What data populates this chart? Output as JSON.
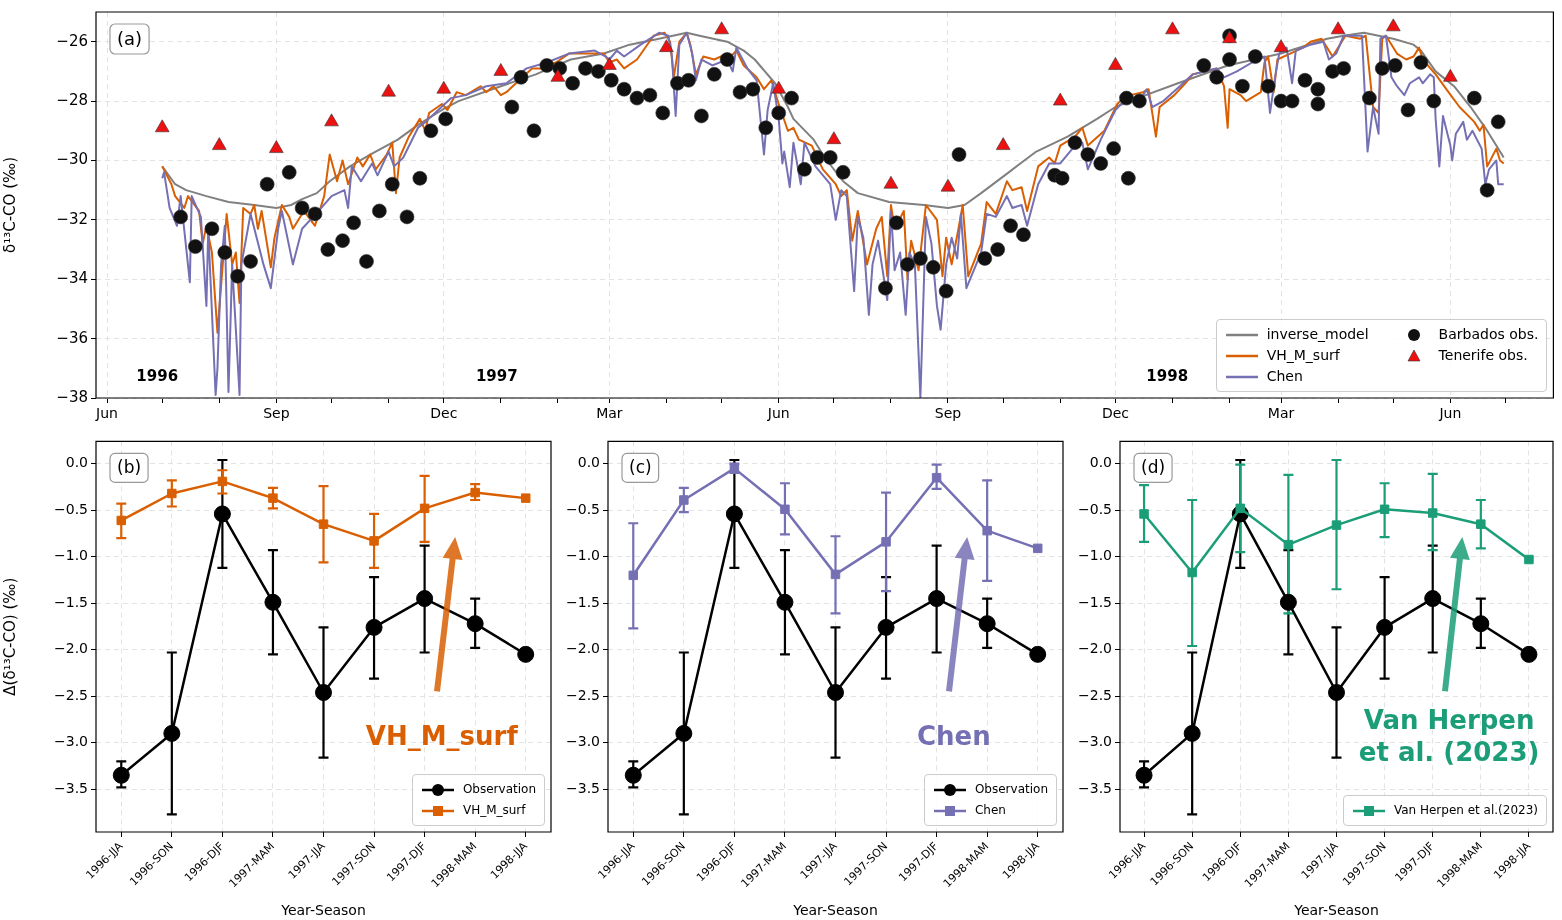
{
  "chart_data": [
    {
      "type": "line",
      "ylabel": "δ¹³C-CO (‰)",
      "xlim": [
        "1996-05-26",
        "1998-07-27"
      ],
      "ylim": [
        -38,
        -25.0
      ],
      "xticks": [
        {
          "value": "1996-06-01",
          "label": "Jun"
        },
        {
          "value": "1996-07-01",
          "label": null
        },
        {
          "value": "1996-08-01",
          "label": null
        },
        {
          "value": "1996-09-01",
          "label": "Sep"
        },
        {
          "value": "1996-10-01",
          "label": null
        },
        {
          "value": "1996-11-01",
          "label": null
        },
        {
          "value": "1996-12-01",
          "label": "Dec"
        },
        {
          "value": "1997-01-01",
          "label": null
        },
        {
          "value": "1997-02-01",
          "label": null
        },
        {
          "value": "1997-03-01",
          "label": "Mar"
        },
        {
          "value": "1997-04-01",
          "label": null
        },
        {
          "value": "1997-05-01",
          "label": null
        },
        {
          "value": "1997-06-01",
          "label": "Jun"
        },
        {
          "value": "1997-07-01",
          "label": null
        },
        {
          "value": "1997-08-01",
          "label": null
        },
        {
          "value": "1997-09-01",
          "label": "Sep"
        },
        {
          "value": "1997-10-01",
          "label": null
        },
        {
          "value": "1997-11-01",
          "label": null
        },
        {
          "value": "1997-12-01",
          "label": "Dec"
        },
        {
          "value": "1998-01-01",
          "label": null
        },
        {
          "value": "1998-02-01",
          "label": null
        },
        {
          "value": "1998-03-01",
          "label": "Mar"
        },
        {
          "value": "1998-04-01",
          "label": null
        },
        {
          "value": "1998-05-01",
          "label": null
        },
        {
          "value": "1998-06-01",
          "label": "Jun"
        },
        {
          "value": "1998-07-01",
          "label": null
        }
      ],
      "yticks": [
        {
          "value": -38,
          "label": "−38"
        },
        {
          "value": -36,
          "label": "−36"
        },
        {
          "value": -34,
          "label": "−34"
        },
        {
          "value": -32,
          "label": "−32"
        },
        {
          "value": -30,
          "label": "−30"
        },
        {
          "value": -28,
          "label": "−28"
        },
        {
          "value": -26,
          "label": "−26"
        }
      ],
      "grid": true,
      "legend": "bottom right",
      "annotations": [
        "(a)",
        "1996",
        "1997",
        "1998"
      ],
      "series": [
        {
          "name": "inverse_model",
          "type": "line",
          "color": "#808080",
          "x": [
            "1996-07-01",
            "1996-07-08",
            "1996-07-14",
            "1996-07-25",
            "1996-08-06",
            "1996-08-20",
            "1996-09-01",
            "1996-09-09",
            "1996-09-15",
            "1996-09-23",
            "1996-09-30",
            "1996-10-11",
            "1996-10-22",
            "1996-11-06",
            "1996-11-17",
            "1996-11-30",
            "1996-12-09",
            "1997-01-01",
            "1997-01-20",
            "1997-02-08",
            "1997-02-26",
            "1997-03-12",
            "1997-03-28",
            "1997-04-12",
            "1997-04-19",
            "1997-05-04",
            "1997-05-13",
            "1997-05-19",
            "1997-05-30",
            "1997-06-06",
            "1997-06-09",
            "1997-06-20",
            "1997-06-26",
            "1997-07-06",
            "1997-07-14",
            "1997-07-31",
            "1997-08-19",
            "1997-09-01",
            "1997-09-10",
            "1997-09-19",
            "1997-10-04",
            "1997-10-19",
            "1997-11-05",
            "1997-11-21",
            "1997-12-01",
            "1997-12-13",
            "1998-01-04",
            "1998-01-31",
            "1998-03-01",
            "1998-03-26",
            "1998-04-04",
            "1998-04-15",
            "1998-05-01",
            "1998-05-12",
            "1998-05-16",
            "1998-05-24",
            "1998-06-03",
            "1998-06-12",
            "1998-06-20",
            "1998-06-30"
          ],
          "values": [
            -30.2,
            -30.8,
            -31.0,
            -31.2,
            -31.4,
            -31.5,
            -31.6,
            -31.5,
            -31.3,
            -31.1,
            -30.7,
            -30.2,
            -29.8,
            -29.3,
            -28.8,
            -28.3,
            -28.0,
            -27.5,
            -27.1,
            -26.6,
            -26.4,
            -26.1,
            -25.9,
            -25.7,
            -25.8,
            -26.0,
            -26.3,
            -26.6,
            -27.4,
            -28.2,
            -28.6,
            -29.3,
            -29.9,
            -30.7,
            -31.1,
            -31.4,
            -31.5,
            -31.6,
            -31.5,
            -31.1,
            -30.4,
            -29.7,
            -29.2,
            -28.6,
            -28.2,
            -27.9,
            -27.4,
            -26.8,
            -26.4,
            -25.9,
            -25.8,
            -25.7,
            -25.9,
            -26.1,
            -26.3,
            -27.0,
            -27.5,
            -28.2,
            -28.9,
            -29.9
          ]
        },
        {
          "name": "VH_M_surf",
          "type": "line",
          "color": "#d95f02",
          "x": [
            "1996-07-01",
            "1996-07-06",
            "1996-07-08",
            "1996-07-13",
            "1996-07-15",
            "1996-07-21",
            "1996-07-23",
            "1996-07-25",
            "1996-07-28",
            "1996-07-31",
            "1996-08-02",
            "1996-08-05",
            "1996-08-08",
            "1996-08-10",
            "1996-08-12",
            "1996-08-14",
            "1996-08-18",
            "1996-08-20",
            "1996-08-22",
            "1996-08-24",
            "1996-08-29",
            "1996-08-31",
            "1996-09-04",
            "1996-09-08",
            "1996-09-10",
            "1996-09-16",
            "1996-09-22",
            "1996-09-27",
            "1996-09-30",
            "1996-10-04",
            "1996-10-07",
            "1996-10-10",
            "1996-10-15",
            "1996-10-18",
            "1996-10-22",
            "1996-10-25",
            "1996-10-31",
            "1996-11-03",
            "1996-11-05",
            "1996-11-07",
            "1996-11-12",
            "1996-11-18",
            "1996-11-21",
            "1996-11-23",
            "1996-11-30",
            "1996-12-03",
            "1996-12-08",
            "1996-12-13",
            "1996-12-21",
            "1996-12-24",
            "1996-12-28",
            "1997-01-01",
            "1997-01-04",
            "1997-01-11",
            "1997-01-18",
            "1997-01-23",
            "1997-01-31",
            "1997-02-07",
            "1997-02-20",
            "1997-02-26",
            "1997-03-01",
            "1997-03-05",
            "1997-03-09",
            "1997-03-16",
            "1997-03-25",
            "1997-03-31",
            "1997-04-03",
            "1997-04-05",
            "1997-04-08",
            "1997-04-12",
            "1997-04-14",
            "1997-04-17",
            "1997-04-21",
            "1997-04-27",
            "1997-05-04",
            "1997-05-06",
            "1997-05-09",
            "1997-05-13",
            "1997-05-20",
            "1997-05-24",
            "1997-05-28",
            "1997-06-01",
            "1997-06-06",
            "1997-06-09",
            "1997-06-12",
            "1997-06-19",
            "1997-06-25",
            "1997-07-02",
            "1997-07-05",
            "1997-07-08",
            "1997-07-11",
            "1997-07-14",
            "1997-07-19",
            "1997-07-24",
            "1997-07-27",
            "1997-07-30",
            "1997-08-01",
            "1997-08-03",
            "1997-08-08",
            "1997-08-10",
            "1997-08-12",
            "1997-08-16",
            "1997-08-20",
            "1997-08-26",
            "1997-08-29",
            "1997-08-31",
            "1997-09-03",
            "1997-09-07",
            "1997-09-09",
            "1997-09-12",
            "1997-09-19",
            "1997-09-22",
            "1997-09-27",
            "1997-10-03",
            "1997-10-06",
            "1997-10-11",
            "1997-10-14",
            "1997-10-20",
            "1997-10-26",
            "1997-10-29",
            "1997-11-01",
            "1997-11-09",
            "1997-11-13",
            "1997-11-16",
            "1997-11-25",
            "1997-12-02",
            "1997-12-07",
            "1997-12-09",
            "1997-12-16",
            "1997-12-19",
            "1997-12-21",
            "1997-12-23",
            "1997-12-25",
            "1998-01-02",
            "1998-01-08",
            "1998-01-12",
            "1998-01-25",
            "1998-01-29",
            "1998-01-31",
            "1998-02-01",
            "1998-02-07",
            "1998-02-10",
            "1998-02-18",
            "1998-02-20",
            "1998-02-22",
            "1998-02-25",
            "1998-02-27",
            "1998-03-06",
            "1998-03-13",
            "1998-03-17",
            "1998-03-23",
            "1998-03-26",
            "1998-03-29",
            "1998-04-02",
            "1998-04-05",
            "1998-04-13",
            "1998-04-16",
            "1998-04-20",
            "1998-04-23",
            "1998-04-25",
            "1998-04-27",
            "1998-05-03",
            "1998-05-08",
            "1998-05-12",
            "1998-05-15",
            "1998-05-17",
            "1998-05-24",
            "1998-05-31",
            "1998-06-06",
            "1998-06-14",
            "1998-06-17",
            "1998-06-19",
            "1998-06-21",
            "1998-06-26",
            "1998-06-28",
            "1998-06-30"
          ],
          "values": [
            -30.2,
            -30.8,
            -31.2,
            -31.6,
            -31.2,
            -31.7,
            -32.8,
            -32.2,
            -33.1,
            -35.8,
            -34.2,
            -31.8,
            -33.5,
            -33.1,
            -34.8,
            -31.6,
            -31.8,
            -31.5,
            -32.3,
            -31.7,
            -33.6,
            -32.6,
            -31.5,
            -31.9,
            -32.3,
            -31.7,
            -32.2,
            -31.2,
            -29.8,
            -30.7,
            -30.0,
            -30.8,
            -29.9,
            -30.2,
            -29.8,
            -30.3,
            -29.8,
            -29.4,
            -31.1,
            -29.9,
            -29.2,
            -28.6,
            -29.0,
            -28.4,
            -28.1,
            -28.3,
            -27.7,
            -27.8,
            -27.5,
            -27.7,
            -27.5,
            -27.8,
            -27.7,
            -27.3,
            -26.9,
            -26.9,
            -26.7,
            -26.4,
            -26.4,
            -26.4,
            -26.7,
            -26.6,
            -26.9,
            -26.6,
            -25.8,
            -25.7,
            -26.0,
            -27.2,
            -26.0,
            -25.7,
            -26.1,
            -27.1,
            -26.5,
            -26.6,
            -26.4,
            -26.5,
            -26.3,
            -26.8,
            -27.2,
            -27.6,
            -27.3,
            -28.1,
            -29.0,
            -28.9,
            -29.3,
            -29.5,
            -30.3,
            -30.8,
            -31.2,
            -31.0,
            -32.7,
            -31.7,
            -33.5,
            -32.3,
            -31.9,
            -33.9,
            -31.5,
            -32.3,
            -31.7,
            -34.0,
            -32.7,
            -33.7,
            -31.5,
            -32.0,
            -33.9,
            -32.6,
            -33.5,
            -32.2,
            -31.5,
            -33.9,
            -32.8,
            -31.4,
            -31.8,
            -30.7,
            -31.0,
            -30.9,
            -31.7,
            -30.2,
            -29.9,
            -30.1,
            -29.5,
            -29.2,
            -28.9,
            -29.5,
            -29.0,
            -28.1,
            -27.8,
            -27.8,
            -27.7,
            -27.6,
            -28.4,
            -29.2,
            -28.2,
            -27.8,
            -27.4,
            -27.1,
            -26.9,
            -27.5,
            -28.9,
            -27.6,
            -27.8,
            -28.0,
            -27.7,
            -26.7,
            -26.5,
            -27.7,
            -26.6,
            -26.4,
            -26.2,
            -26.0,
            -25.9,
            -26.2,
            -26.5,
            -26.1,
            -25.8,
            -25.9,
            -25.8,
            -28.2,
            -28.4,
            -25.9,
            -25.8,
            -26.4,
            -26.6,
            -26.5,
            -26.2,
            -26.6,
            -27.1,
            -27.7,
            -28.2,
            -28.7,
            -29.0,
            -28.8,
            -30.2,
            -29.6,
            -30.0,
            -30.1
          ]
        },
        {
          "name": "Chen",
          "type": "line",
          "color": "#7570b3",
          "x": [
            "1996-07-01",
            "1996-07-02",
            "1996-07-05",
            "1996-07-09",
            "1996-07-11",
            "1996-07-16",
            "1996-07-17",
            "1996-07-22",
            "1996-07-25",
            "1996-07-26",
            "1996-07-30",
            "1996-07-31",
            "1996-08-02",
            "1996-08-04",
            "1996-08-06",
            "1996-08-08",
            "1996-08-12",
            "1996-08-13",
            "1996-08-18",
            "1996-08-25",
            "1996-08-29",
            "1996-09-02",
            "1996-09-04",
            "1996-09-10",
            "1996-09-15",
            "1996-09-24",
            "1996-10-01",
            "1996-10-08",
            "1996-10-10",
            "1996-10-12",
            "1996-10-17",
            "1996-10-23",
            "1996-10-26",
            "1996-11-01",
            "1996-11-04",
            "1996-11-09",
            "1996-11-17",
            "1996-11-21",
            "1996-11-28",
            "1996-12-05",
            "1996-12-13",
            "1996-12-24",
            "1997-01-04",
            "1997-01-15",
            "1997-01-26",
            "1997-02-07",
            "1997-02-21",
            "1997-02-27",
            "1997-03-01",
            "1997-03-05",
            "1997-03-09",
            "1997-03-18",
            "1997-03-28",
            "1997-04-02",
            "1997-04-04",
            "1997-04-06",
            "1997-04-08",
            "1997-04-12",
            "1997-04-15",
            "1997-04-17",
            "1997-04-20",
            "1997-04-26",
            "1997-05-04",
            "1997-05-07",
            "1997-05-09",
            "1997-05-15",
            "1997-05-20",
            "1997-05-24",
            "1997-05-26",
            "1997-05-29",
            "1997-06-01",
            "1997-06-03",
            "1997-06-04",
            "1997-06-07",
            "1997-06-09",
            "1997-06-13",
            "1997-06-15",
            "1997-06-21",
            "1997-06-29",
            "1997-07-02",
            "1997-07-05",
            "1997-07-08",
            "1997-07-12",
            "1997-07-14",
            "1997-07-17",
            "1997-07-20",
            "1997-07-22",
            "1997-07-25",
            "1997-07-30",
            "1997-08-01",
            "1997-08-03",
            "1997-08-06",
            "1997-08-09",
            "1997-08-11",
            "1997-08-14",
            "1997-08-17",
            "1997-08-20",
            "1997-08-23",
            "1997-08-26",
            "1997-08-28",
            "1997-08-31",
            "1997-09-03",
            "1997-09-06",
            "1997-09-08",
            "1997-09-11",
            "1997-09-15",
            "1997-09-19",
            "1997-09-22",
            "1997-09-27",
            "1997-10-03",
            "1997-10-06",
            "1997-10-11",
            "1997-10-14",
            "1997-10-20",
            "1997-10-26",
            "1997-11-01",
            "1997-11-09",
            "1997-11-13",
            "1997-11-16",
            "1997-11-23",
            "1997-12-01",
            "1997-12-07",
            "1997-12-15",
            "1997-12-18",
            "1997-12-21",
            "1997-12-27",
            "1998-01-05",
            "1998-01-12",
            "1998-01-25",
            "1998-01-29",
            "1998-02-05",
            "1998-02-16",
            "1998-02-20",
            "1998-02-23",
            "1998-02-26",
            "1998-02-28",
            "1998-03-04",
            "1998-03-07",
            "1998-03-09",
            "1998-03-17",
            "1998-03-24",
            "1998-03-27",
            "1998-03-31",
            "1998-04-04",
            "1998-04-14",
            "1998-04-17",
            "1998-04-20",
            "1998-04-23",
            "1998-04-24",
            "1998-04-27",
            "1998-04-30",
            "1998-05-03",
            "1998-05-07",
            "1998-05-10",
            "1998-05-15",
            "1998-05-17",
            "1998-05-21",
            "1998-05-23",
            "1998-05-24",
            "1998-05-26",
            "1998-05-28",
            "1998-06-01",
            "1998-06-02",
            "1998-06-04",
            "1998-06-08",
            "1998-06-10",
            "1998-06-13",
            "1998-06-18",
            "1998-06-20",
            "1998-06-22",
            "1998-06-26",
            "1998-06-27",
            "1998-06-30"
          ],
          "values": [
            -30.6,
            -30.4,
            -31.6,
            -32.2,
            -31.2,
            -34.1,
            -31.2,
            -31.9,
            -34.9,
            -32.3,
            -37.9,
            -37.0,
            -33.5,
            -32.2,
            -37.8,
            -33.5,
            -37.9,
            -33.5,
            -31.8,
            -33.5,
            -34.3,
            -32.3,
            -31.7,
            -33.5,
            -32.3,
            -31.7,
            -31.2,
            -31.0,
            -31.6,
            -30.2,
            -30.7,
            -30.1,
            -30.5,
            -29.7,
            -30.2,
            -29.9,
            -28.9,
            -28.7,
            -28.3,
            -27.9,
            -27.8,
            -27.5,
            -27.4,
            -26.9,
            -26.7,
            -26.4,
            -26.3,
            -26.5,
            -26.6,
            -26.3,
            -26.5,
            -26.1,
            -25.7,
            -25.8,
            -26.5,
            -28.5,
            -26.1,
            -25.7,
            -26.4,
            -27.3,
            -26.6,
            -26.8,
            -26.6,
            -27.0,
            -26.2,
            -26.9,
            -27.3,
            -29.8,
            -28.3,
            -27.4,
            -28.6,
            -30.1,
            -29.7,
            -30.9,
            -29.4,
            -30.8,
            -29.4,
            -30.2,
            -30.8,
            -32.0,
            -31.0,
            -31.2,
            -34.4,
            -31.9,
            -32.6,
            -35.2,
            -33.5,
            -32.7,
            -34.7,
            -31.7,
            -33.7,
            -33.1,
            -35.2,
            -33.1,
            -33.5,
            -38.0,
            -31.9,
            -32.8,
            -34.9,
            -35.7,
            -33.5,
            -32.6,
            -33.3,
            -31.8,
            -34.3,
            -33.7,
            -33.1,
            -31.8,
            -31.9,
            -31.2,
            -31.6,
            -31.5,
            -32.2,
            -30.8,
            -30.1,
            -30.1,
            -29.5,
            -29.4,
            -30.3,
            -29.3,
            -28.3,
            -27.9,
            -27.9,
            -27.6,
            -28.2,
            -28.0,
            -27.5,
            -27.1,
            -26.9,
            -27.2,
            -27.0,
            -26.6,
            -26.5,
            -28.4,
            -27.1,
            -26.4,
            -26.2,
            -27.4,
            -26.3,
            -26.1,
            -26.0,
            -26.6,
            -26.4,
            -25.8,
            -25.8,
            -29.7,
            -28.2,
            -29.1,
            -25.9,
            -25.8,
            -27.2,
            -27.5,
            -27.8,
            -27.4,
            -27.2,
            -27.4,
            -27.1,
            -27.2,
            -28.6,
            -30.2,
            -28.5,
            -29.5,
            -30.0,
            -29.1,
            -28.7,
            -29.3,
            -29.0,
            -29.6,
            -30.8,
            -30.3,
            -30.0,
            -30.8,
            -30.8
          ]
        },
        {
          "name": "Barbados obs.",
          "type": "scatter",
          "marker": "circle",
          "color": "#111111",
          "x": [
            "1996-07-11",
            "1996-07-19",
            "1996-07-28",
            "1996-08-04",
            "1996-08-11",
            "1996-08-18",
            "1996-08-27",
            "1996-09-08",
            "1996-09-15",
            "1996-09-22",
            "1996-09-29",
            "1996-10-07",
            "1996-10-13",
            "1996-10-20",
            "1996-10-27",
            "1996-11-03",
            "1996-11-11",
            "1996-11-18",
            "1996-11-24",
            "1996-12-02",
            "1997-01-07",
            "1997-01-12",
            "1997-01-19",
            "1997-01-26",
            "1997-02-02",
            "1997-02-09",
            "1997-02-16",
            "1997-02-23",
            "1997-03-02",
            "1997-03-09",
            "1997-03-16",
            "1997-03-23",
            "1997-03-30",
            "1997-04-07",
            "1997-04-13",
            "1997-04-20",
            "1997-04-27",
            "1997-05-04",
            "1997-05-11",
            "1997-05-18",
            "1997-05-25",
            "1997-06-01",
            "1997-06-08",
            "1997-06-15",
            "1997-06-22",
            "1997-06-29",
            "1997-07-06",
            "1997-07-29",
            "1997-08-04",
            "1997-08-10",
            "1997-08-17",
            "1997-08-24",
            "1997-08-31",
            "1997-09-07",
            "1997-09-21",
            "1997-09-28",
            "1997-10-05",
            "1997-10-12",
            "1997-10-29",
            "1997-11-02",
            "1997-11-09",
            "1997-11-16",
            "1997-11-23",
            "1997-11-30",
            "1997-12-07",
            "1997-12-08",
            "1997-12-14",
            "1998-01-18",
            "1998-01-25",
            "1998-02-01",
            "1998-02-01",
            "1998-02-08",
            "1998-02-15",
            "1998-02-22",
            "1998-03-01",
            "1998-03-07",
            "1998-03-14",
            "1998-03-21",
            "1998-03-21",
            "1998-03-29",
            "1998-04-04",
            "1998-04-18",
            "1998-04-25",
            "1998-05-02",
            "1998-05-09",
            "1998-05-16",
            "1998-05-23",
            "1998-06-14",
            "1998-06-21",
            "1998-06-27"
          ],
          "values": [
            -31.9,
            -32.9,
            -32.3,
            -33.1,
            -33.9,
            -33.4,
            -30.8,
            -30.4,
            -31.6,
            -31.8,
            -33.0,
            -32.7,
            -32.1,
            -33.4,
            -31.7,
            -30.8,
            -31.9,
            -30.6,
            -29.0,
            -28.6,
            -28.2,
            -27.2,
            -29.0,
            -26.8,
            -26.9,
            -27.4,
            -26.9,
            -27.0,
            -27.3,
            -27.6,
            -27.9,
            -27.8,
            -28.4,
            -27.4,
            -27.3,
            -28.5,
            -27.1,
            -26.6,
            -27.7,
            -27.6,
            -28.9,
            -28.4,
            -27.9,
            -30.3,
            -29.9,
            -29.9,
            -30.4,
            -34.3,
            -32.1,
            -33.5,
            -33.3,
            -33.6,
            -34.4,
            -29.8,
            -33.3,
            -33.0,
            -32.2,
            -32.5,
            -30.5,
            -30.6,
            -29.4,
            -29.8,
            -30.1,
            -29.6,
            -27.9,
            -30.6,
            -28.0,
            -26.8,
            -27.2,
            -26.6,
            -25.8,
            -27.5,
            -26.5,
            -27.5,
            -28.0,
            -28.0,
            -27.3,
            -27.6,
            -28.1,
            -27.0,
            -26.9,
            -27.9,
            -26.9,
            -26.8,
            -28.3,
            -26.7,
            -28.0,
            -27.9,
            -31.0,
            -28.7
          ]
        },
        {
          "name": "Tenerife obs.",
          "type": "scatter",
          "marker": "triangle",
          "color": "#ee1111",
          "x": [
            "1996-07-01",
            "1996-08-01",
            "1996-09-01",
            "1996-10-01",
            "1996-11-01",
            "1996-12-01",
            "1997-01-01",
            "1997-02-01",
            "1997-03-01",
            "1997-04-01",
            "1997-05-01",
            "1997-06-01",
            "1997-07-01",
            "1997-08-01",
            "1997-09-01",
            "1997-10-01",
            "1997-11-01",
            "1997-12-01",
            "1998-01-01",
            "1998-02-01",
            "1998-03-01",
            "1998-04-01",
            "1998-05-01",
            "1998-06-01"
          ],
          "values": [
            -28.9,
            -29.5,
            -29.6,
            -28.7,
            -27.7,
            -27.6,
            -27.0,
            -27.2,
            -26.8,
            -26.2,
            -25.6,
            -27.6,
            -29.3,
            -30.8,
            -30.9,
            -29.5,
            -28.0,
            -26.8,
            -25.6,
            -25.9,
            -26.2,
            -25.6,
            -25.5,
            -27.2
          ]
        }
      ]
    },
    {
      "type": "line",
      "xlabel": "Year-Season",
      "ylabel": "Δ(δ¹³C-CO) (‰)",
      "categories": [
        "1996-JJA",
        "1996-SON",
        "1996-DJF",
        "1997-MAM",
        "1997-JJA",
        "1997-SON",
        "1997-DJF",
        "1998-MAM",
        "1998-JJA"
      ],
      "ylim": [
        -3.96,
        0.24
      ],
      "yticks": [
        {
          "value": -3.5,
          "label": "−3.5"
        },
        {
          "value": -3,
          "label": "−3.0"
        },
        {
          "value": -2.5,
          "label": "−2.5"
        },
        {
          "value": -2,
          "label": "−2.0"
        },
        {
          "value": -1.5,
          "label": "−1.5"
        },
        {
          "value": -1,
          "label": "−1.0"
        },
        {
          "value": -0.5,
          "label": "−0.5"
        },
        {
          "value": 0,
          "label": "0.0"
        }
      ],
      "grid": true,
      "legend": "bottom right",
      "annotations": [
        "(b)",
        "VH_M_surf"
      ],
      "series": [
        {
          "name": "Observation",
          "color": "#000000",
          "marker": "circle",
          "values": [
            -3.35,
            -2.9,
            -0.54,
            -1.49,
            -2.46,
            -1.76,
            -1.45,
            -1.72,
            -2.05
          ],
          "errors": [
            [
              -3.48,
              -3.2
            ],
            [
              -3.77,
              -2.03
            ],
            [
              -1.12,
              0.04
            ],
            [
              -2.05,
              -0.93
            ],
            [
              -3.16,
              -1.76
            ],
            [
              -2.31,
              -1.22
            ],
            [
              -2.03,
              -0.88
            ],
            [
              -1.98,
              -1.45
            ],
            null
          ]
        },
        {
          "name": "VH_M_surf",
          "color": "#d95f02",
          "marker": "square",
          "values": [
            -0.61,
            -0.32,
            -0.19,
            -0.37,
            -0.65,
            -0.83,
            -0.48,
            -0.31,
            -0.37
          ],
          "errors": [
            [
              -0.8,
              -0.43
            ],
            [
              -0.46,
              -0.18
            ],
            [
              -0.32,
              -0.07
            ],
            [
              -0.48,
              -0.26
            ],
            [
              -1.06,
              -0.24
            ],
            [
              -1.12,
              -0.54
            ],
            [
              -0.84,
              -0.13
            ],
            [
              -0.39,
              -0.22
            ],
            null
          ]
        }
      ]
    },
    {
      "type": "line",
      "xlabel": "Year-Season",
      "categories": [
        "1996-JJA",
        "1996-SON",
        "1996-DJF",
        "1997-MAM",
        "1997-JJA",
        "1997-SON",
        "1997-DJF",
        "1998-MAM",
        "1998-JJA"
      ],
      "ylim": [
        -3.96,
        0.24
      ],
      "yticks": [
        {
          "value": -3.5,
          "label": "−3.5"
        },
        {
          "value": -3,
          "label": "−3.0"
        },
        {
          "value": -2.5,
          "label": "−2.5"
        },
        {
          "value": -2,
          "label": "−2.0"
        },
        {
          "value": -1.5,
          "label": "−1.5"
        },
        {
          "value": -1,
          "label": "−1.0"
        },
        {
          "value": -0.5,
          "label": "−0.5"
        },
        {
          "value": 0,
          "label": "0.0"
        }
      ],
      "grid": true,
      "legend": "bottom right",
      "annotations": [
        "(c)",
        "Chen"
      ],
      "series": [
        {
          "name": "Observation",
          "color": "#000000",
          "marker": "circle",
          "values": [
            -3.35,
            -2.9,
            -0.54,
            -1.49,
            -2.46,
            -1.76,
            -1.45,
            -1.72,
            -2.05
          ],
          "errors": [
            [
              -3.48,
              -3.2
            ],
            [
              -3.77,
              -2.03
            ],
            [
              -1.12,
              0.04
            ],
            [
              -2.05,
              -0.93
            ],
            [
              -3.16,
              -1.76
            ],
            [
              -2.31,
              -1.22
            ],
            [
              -2.03,
              -0.88
            ],
            [
              -1.98,
              -1.45
            ],
            null
          ]
        },
        {
          "name": "Chen",
          "color": "#7570b3",
          "marker": "square",
          "values": [
            -1.2,
            -0.39,
            -0.05,
            -0.49,
            -1.19,
            -0.84,
            -0.15,
            -0.72,
            -0.91
          ],
          "errors": [
            [
              -1.77,
              -0.64
            ],
            [
              -0.52,
              -0.26
            ],
            [
              -0.1,
              0.0
            ],
            [
              -0.76,
              -0.21
            ],
            [
              -1.61,
              -0.78
            ],
            [
              -1.37,
              -0.31
            ],
            [
              -0.27,
              -0.01
            ],
            [
              -1.26,
              -0.18
            ],
            null
          ]
        }
      ]
    },
    {
      "type": "line",
      "xlabel": "Year-Season",
      "categories": [
        "1996-JJA",
        "1996-SON",
        "1996-DJF",
        "1997-MAM",
        "1997-JJA",
        "1997-SON",
        "1997-DJF",
        "1998-MAM",
        "1998-JJA"
      ],
      "ylim": [
        -3.96,
        0.24
      ],
      "yticks": [
        {
          "value": -3.5,
          "label": "−3.5"
        },
        {
          "value": -3,
          "label": "−3.0"
        },
        {
          "value": -2.5,
          "label": "−2.5"
        },
        {
          "value": -2,
          "label": "−2.0"
        },
        {
          "value": -1.5,
          "label": "−1.5"
        },
        {
          "value": -1,
          "label": "−1.0"
        },
        {
          "value": -0.5,
          "label": "−0.5"
        },
        {
          "value": 0,
          "label": "0.0"
        }
      ],
      "grid": true,
      "legend": "bottom right",
      "annotations": [
        "(d)",
        "Van Herpen et al. (2023)"
      ],
      "series": [
        {
          "color": "#000000",
          "marker": "circle",
          "values": [
            -3.35,
            -2.9,
            -0.54,
            -1.49,
            -2.46,
            -1.76,
            -1.45,
            -1.72,
            -2.05
          ],
          "errors": [
            [
              -3.48,
              -3.2
            ],
            [
              -3.77,
              -2.03
            ],
            [
              -1.12,
              0.04
            ],
            [
              -2.05,
              -0.93
            ],
            [
              -3.16,
              -1.76
            ],
            [
              -2.31,
              -1.22
            ],
            [
              -2.03,
              -0.88
            ],
            [
              -1.98,
              -1.45
            ],
            null
          ]
        },
        {
          "name": "Van Herpen et al.(2023)",
          "color": "#1b9e77",
          "marker": "square",
          "values": [
            -0.54,
            -1.17,
            -0.48,
            -0.87,
            -0.66,
            -0.49,
            -0.53,
            -0.65,
            -1.03
          ],
          "errors": [
            [
              -0.84,
              -0.23
            ],
            [
              -1.96,
              -0.39
            ],
            [
              -0.95,
              -0.01
            ],
            [
              -1.61,
              -0.12
            ],
            [
              -1.35,
              0.04
            ],
            [
              -0.79,
              -0.21
            ],
            [
              -0.93,
              -0.11
            ],
            [
              -0.91,
              -0.39
            ],
            null
          ]
        }
      ]
    }
  ]
}
